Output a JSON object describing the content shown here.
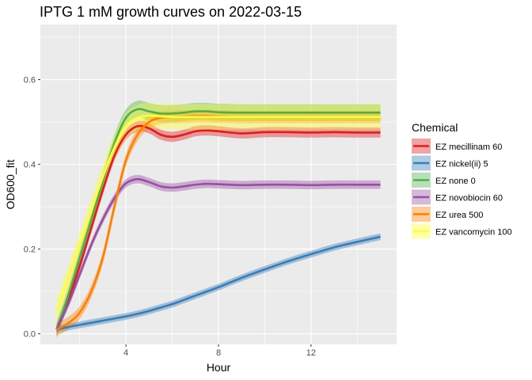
{
  "chart_data": {
    "type": "line",
    "title": "IPTG 1 mM growth curves on 2022-03-15",
    "xlabel": "Hour",
    "ylabel": "OD600_fit",
    "xlim": [
      0.3,
      15.7
    ],
    "ylim": [
      -0.025,
      0.73
    ],
    "x_ticks": [
      4,
      8,
      12
    ],
    "x_tick_labels": [
      "4",
      "8",
      "12"
    ],
    "y_ticks": [
      0.0,
      0.2,
      0.4,
      0.6
    ],
    "y_tick_labels": [
      "0.0",
      "0.2",
      "0.4",
      "0.6"
    ],
    "grid": true,
    "legend_position": "right",
    "legend_title": "Chemical",
    "x": [
      1,
      1.5,
      2,
      2.5,
      3,
      3.5,
      4,
      4.5,
      5,
      5.5,
      6,
      6.5,
      7,
      7.5,
      8,
      9,
      10,
      11,
      12,
      13,
      14,
      15
    ],
    "series": [
      {
        "name": "EZ mecillinam 60",
        "color": "#E41A1C",
        "ribbon": 0.012,
        "values": [
          0.01,
          0.08,
          0.16,
          0.25,
          0.34,
          0.42,
          0.47,
          0.49,
          0.485,
          0.47,
          0.465,
          0.47,
          0.478,
          0.48,
          0.478,
          0.473,
          0.476,
          0.476,
          0.475,
          0.476,
          0.475,
          0.475
        ]
      },
      {
        "name": "EZ nickel(ii) 5",
        "color": "#377EB8",
        "ribbon": 0.008,
        "values": [
          0.01,
          0.016,
          0.021,
          0.026,
          0.031,
          0.036,
          0.041,
          0.047,
          0.054,
          0.062,
          0.07,
          0.08,
          0.09,
          0.1,
          0.11,
          0.132,
          0.152,
          0.171,
          0.188,
          0.204,
          0.217,
          0.229
        ]
      },
      {
        "name": "EZ none 0",
        "color": "#4DAF4A",
        "ribbon": 0.02,
        "values": [
          0.01,
          0.09,
          0.18,
          0.27,
          0.36,
          0.45,
          0.51,
          0.53,
          0.525,
          0.52,
          0.52,
          0.522,
          0.525,
          0.525,
          0.523,
          0.522,
          0.522,
          0.522,
          0.522,
          0.522,
          0.522,
          0.522
        ]
      },
      {
        "name": "EZ novobiocin 60",
        "color": "#984EA3",
        "ribbon": 0.01,
        "values": [
          0.01,
          0.07,
          0.14,
          0.21,
          0.27,
          0.32,
          0.355,
          0.365,
          0.358,
          0.348,
          0.345,
          0.348,
          0.352,
          0.354,
          0.353,
          0.351,
          0.352,
          0.352,
          0.351,
          0.352,
          0.352,
          0.352
        ]
      },
      {
        "name": "EZ urea 500",
        "color": "#FF7F00",
        "ribbon": 0.015,
        "values": [
          0.01,
          0.025,
          0.05,
          0.1,
          0.18,
          0.3,
          0.41,
          0.47,
          0.5,
          0.51,
          0.512,
          0.513,
          0.514,
          0.514,
          0.513,
          0.512,
          0.512,
          0.512,
          0.512,
          0.512,
          0.512,
          0.512
        ]
      },
      {
        "name": "EZ vancomycin 100",
        "color": "#FFFF33",
        "ribbon": 0.03,
        "values": [
          0.05,
          0.13,
          0.21,
          0.29,
          0.37,
          0.44,
          0.49,
          0.51,
          0.515,
          0.513,
          0.512,
          0.512,
          0.512,
          0.512,
          0.512,
          0.512,
          0.512,
          0.512,
          0.512,
          0.512,
          0.512,
          0.512
        ]
      }
    ]
  }
}
